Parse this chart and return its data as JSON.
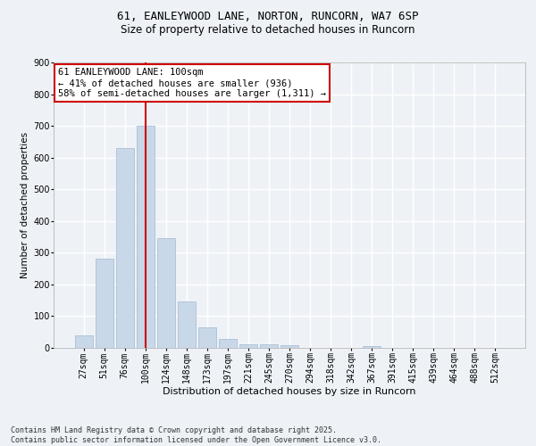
{
  "title1": "61, EANLEYWOOD LANE, NORTON, RUNCORN, WA7 6SP",
  "title2": "Size of property relative to detached houses in Runcorn",
  "xlabel": "Distribution of detached houses by size in Runcorn",
  "ylabel": "Number of detached properties",
  "categories": [
    "27sqm",
    "51sqm",
    "76sqm",
    "100sqm",
    "124sqm",
    "148sqm",
    "173sqm",
    "197sqm",
    "221sqm",
    "245sqm",
    "270sqm",
    "294sqm",
    "318sqm",
    "342sqm",
    "367sqm",
    "391sqm",
    "415sqm",
    "439sqm",
    "464sqm",
    "488sqm",
    "512sqm"
  ],
  "values": [
    40,
    280,
    630,
    700,
    345,
    145,
    65,
    28,
    12,
    10,
    9,
    0,
    0,
    0,
    5,
    0,
    0,
    0,
    0,
    0,
    0
  ],
  "bar_color": "#c8d8e8",
  "bar_edge_color": "#a0b8d0",
  "red_line_index": 3,
  "red_line_color": "#cc0000",
  "ylim": [
    0,
    900
  ],
  "yticks": [
    0,
    100,
    200,
    300,
    400,
    500,
    600,
    700,
    800,
    900
  ],
  "annotation_text": "61 EANLEYWOOD LANE: 100sqm\n← 41% of detached houses are smaller (936)\n58% of semi-detached houses are larger (1,311) →",
  "annotation_box_color": "#ffffff",
  "annotation_box_edge_color": "#cc0000",
  "footer_text": "Contains HM Land Registry data © Crown copyright and database right 2025.\nContains public sector information licensed under the Open Government Licence v3.0.",
  "bg_color": "#eef2f7",
  "plot_bg_color": "#eef2f7",
  "grid_color": "#ffffff",
  "title1_fontsize": 9,
  "title2_fontsize": 8.5,
  "xlabel_fontsize": 8,
  "ylabel_fontsize": 7.5,
  "tick_fontsize": 7,
  "annotation_fontsize": 7.5,
  "footer_fontsize": 6
}
